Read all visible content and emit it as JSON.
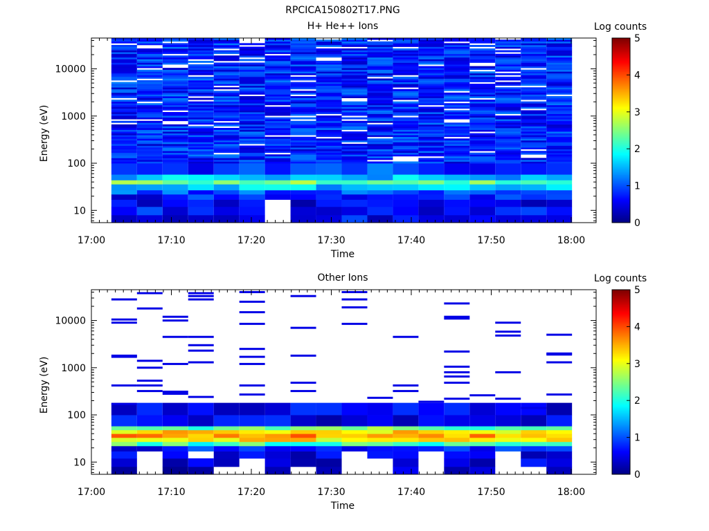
{
  "figure": {
    "title": "RPCICA150802T17.PNG"
  },
  "chart_data": [
    {
      "type": "heatmap",
      "title": "H+ He++ Ions",
      "xlabel": "Time",
      "ylabel": "Energy (eV)",
      "x_ticks": [
        "17:00",
        "17:10",
        "17:20",
        "17:30",
        "17:40",
        "17:50",
        "18:00"
      ],
      "x_range_minutes": [
        0,
        60
      ],
      "y_scale": "log",
      "y_range": [
        5.5,
        45000
      ],
      "y_tick_values": [
        10,
        100,
        1000,
        10000
      ],
      "y_ticks": [
        "10",
        "100",
        "1000",
        "10000"
      ],
      "data_start_minutes": 2.5,
      "scan_minutes": 3.2,
      "colorbar": {
        "label": "Log counts",
        "range": [
          0,
          5
        ],
        "ticks": [
          "0",
          "1",
          "2",
          "3",
          "4",
          "5"
        ],
        "colormap": "jet"
      },
      "profile": [
        {
          "e_low": 5.5,
          "e_high": 8,
          "value": 0.6
        },
        {
          "e_low": 8,
          "e_high": 12,
          "value": 0.7
        },
        {
          "e_low": 12,
          "e_high": 17,
          "value": 0.5
        },
        {
          "e_low": 17,
          "e_high": 22,
          "value": 0.7
        },
        {
          "e_low": 22,
          "e_high": 27,
          "value": 1.0
        },
        {
          "e_low": 27,
          "e_high": 36,
          "value": 1.6
        },
        {
          "e_low": 36,
          "e_high": 44,
          "value": 2.4
        },
        {
          "e_low": 44,
          "e_high": 58,
          "value": 1.6
        },
        {
          "e_low": 58,
          "e_high": 100,
          "value": 0.9
        },
        {
          "e_low": 100,
          "e_high": 45000,
          "value": 0.8
        }
      ],
      "gaps": [
        {
          "scan": 6,
          "e_low": 5.5,
          "e_high": 19
        },
        {
          "scan": 9,
          "e_low": 16,
          "e_high": 19
        },
        {
          "scan": 10,
          "e_low": 16,
          "e_high": 19
        },
        {
          "scan": 16,
          "e_low": 16,
          "e_high": 19
        }
      ]
    },
    {
      "type": "heatmap",
      "title": "Other Ions",
      "xlabel": "Time",
      "ylabel": "Energy (eV)",
      "x_ticks": [
        "17:00",
        "17:10",
        "17:20",
        "17:30",
        "17:40",
        "17:50",
        "18:00"
      ],
      "x_range_minutes": [
        0,
        60
      ],
      "y_scale": "log",
      "y_range": [
        5.5,
        45000
      ],
      "y_tick_values": [
        10,
        100,
        1000,
        10000
      ],
      "y_ticks": [
        "10",
        "100",
        "1000",
        "10000"
      ],
      "data_start_minutes": 2.5,
      "scan_minutes": 3.2,
      "colorbar": {
        "label": "Log counts",
        "range": [
          0,
          5
        ],
        "ticks": [
          "0",
          "1",
          "2",
          "3",
          "4",
          "5"
        ],
        "colormap": "jet"
      },
      "profile": [
        {
          "e_low": 5.5,
          "e_high": 8,
          "value": 0.4
        },
        {
          "e_low": 8,
          "e_high": 12,
          "value": 0.5
        },
        {
          "e_low": 12,
          "e_high": 17,
          "value": 0.5
        },
        {
          "e_low": 17,
          "e_high": 22,
          "value": 0.7
        },
        {
          "e_low": 22,
          "e_high": 27,
          "value": 2.2
        },
        {
          "e_low": 27,
          "e_high": 33,
          "value": 3.2
        },
        {
          "e_low": 33,
          "e_high": 40,
          "value": 3.6
        },
        {
          "e_low": 40,
          "e_high": 48,
          "value": 3.3
        },
        {
          "e_low": 48,
          "e_high": 58,
          "value": 2.4
        },
        {
          "e_low": 58,
          "e_high": 100,
          "value": 0.6
        },
        {
          "e_low": 100,
          "e_high": 180,
          "value": 0.5
        }
      ],
      "sparse_lines_ev": [
        [
          28000,
          10500,
          9000,
          1800,
          1700,
          420,
          170
        ],
        [
          38000,
          18000,
          1400,
          1000,
          530,
          420,
          320
        ],
        [
          12000,
          10000,
          4500,
          1200,
          310,
          280
        ],
        [
          38000,
          33000,
          28000,
          4500,
          3000,
          2300,
          1300,
          240
        ],
        [],
        [
          40000,
          25000,
          15000,
          8500,
          2500,
          1700,
          1200,
          420,
          270
        ],
        [],
        [
          33000,
          7000,
          1800,
          480,
          320
        ],
        [],
        [
          40000,
          28000,
          19000,
          8500
        ],
        [
          230
        ],
        [
          4500,
          420,
          320
        ],
        [
          190
        ],
        [
          23000,
          12000,
          11000,
          2200,
          1050,
          800,
          650,
          480,
          220
        ],
        [
          260
        ],
        [
          9000,
          5800,
          4800,
          800,
          220
        ],
        [
          140
        ],
        [
          5000,
          2000,
          1900,
          1300,
          270
        ]
      ],
      "gaps": [
        {
          "scan": 1,
          "e_low": 5.5,
          "e_high": 20
        },
        {
          "scan": 3,
          "e_low": 12,
          "e_high": 17
        },
        {
          "scan": 4,
          "e_low": 5.5,
          "e_high": 8
        },
        {
          "scan": 5,
          "e_low": 5.5,
          "e_high": 12
        },
        {
          "scan": 7,
          "e_low": 5.5,
          "e_high": 8
        },
        {
          "scan": 9,
          "e_low": 5.5,
          "e_high": 17
        },
        {
          "scan": 10,
          "e_low": 5.5,
          "e_high": 12
        },
        {
          "scan": 12,
          "e_low": 5.5,
          "e_high": 20
        },
        {
          "scan": 15,
          "e_low": 5.5,
          "e_high": 20
        },
        {
          "scan": 16,
          "e_low": 5.5,
          "e_high": 8
        }
      ]
    }
  ]
}
